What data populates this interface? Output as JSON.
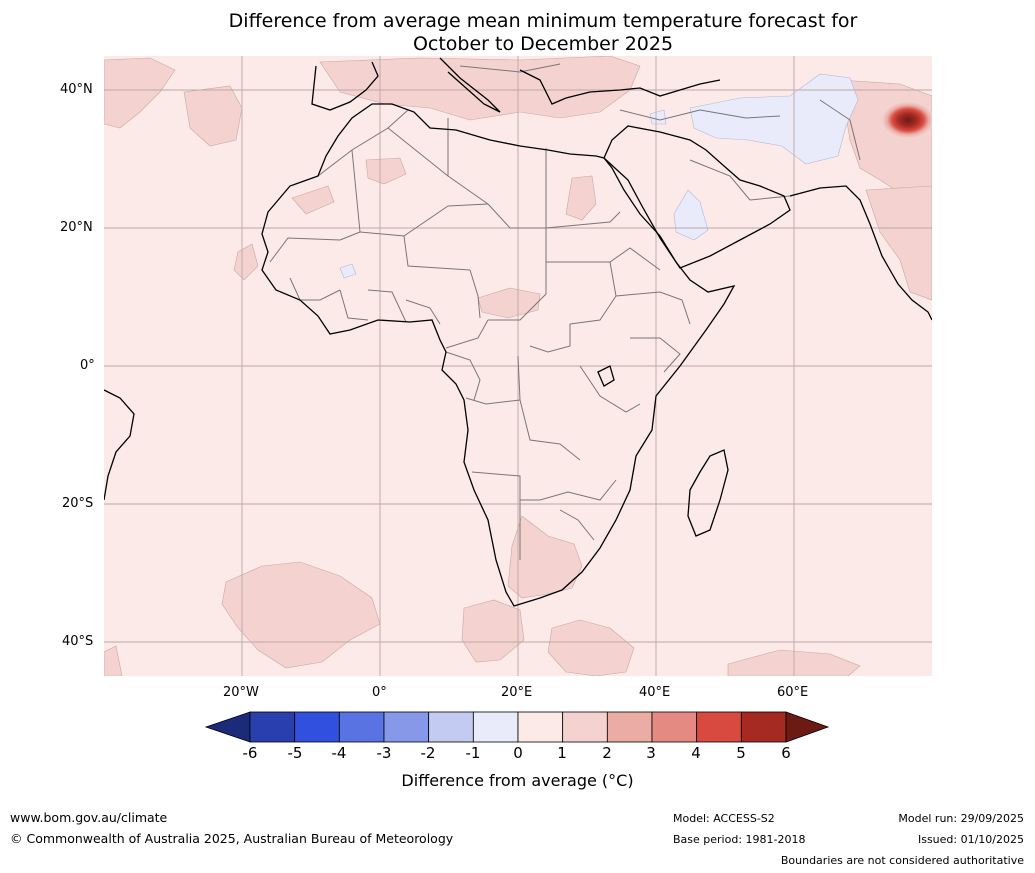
{
  "title": {
    "line1": "Difference from average mean minimum temperature forecast for",
    "line2": "October to December 2025"
  },
  "axes": {
    "lat_labels": [
      "40°N",
      "20°N",
      "0°",
      "20°S",
      "40°S"
    ],
    "lon_labels": [
      "20°W",
      "0°",
      "20°E",
      "40°E",
      "60°E"
    ]
  },
  "colorbar": {
    "ticks": [
      "-6",
      "-5",
      "-4",
      "-3",
      "-2",
      "-1",
      "0",
      "1",
      "2",
      "3",
      "4",
      "5",
      "6"
    ],
    "colors": [
      "#1c2a7a",
      "#2a3fae",
      "#3150e0",
      "#5a73e2",
      "#8898e8",
      "#c4cbf3",
      "#e9ebfb",
      "#fbeae8",
      "#f4d2cf",
      "#ebaca6",
      "#e58a82",
      "#d84a3f",
      "#a52a22",
      "#6b1a14"
    ],
    "label": "Difference from average (°C)"
  },
  "map_colors": {
    "background": "#fbeae8",
    "warm_1_2": "#f4d2cf",
    "cool": "#e9ebfb"
  },
  "footer": {
    "url": "www.bom.gov.au/climate",
    "copyright": "© Commonwealth of Australia 2025, Australian Bureau of Meteorology",
    "model": "Model: ACCESS-S2",
    "base_period": "Base period: 1981-2018",
    "model_run": "Model run: 29/09/2025",
    "issued": "Issued: 01/10/2025",
    "disclaimer": "Boundaries are not considered authoritative"
  }
}
